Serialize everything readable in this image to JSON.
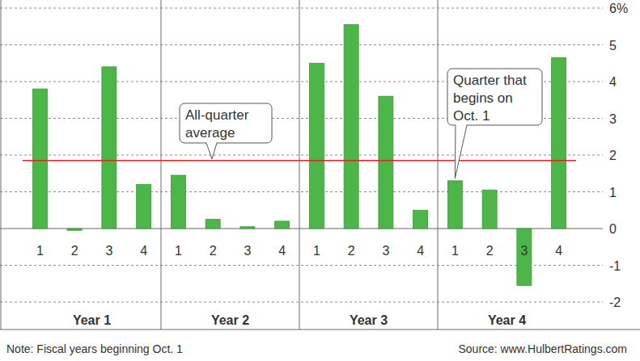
{
  "chart_data": {
    "type": "bar",
    "categories": [
      "1",
      "2",
      "3",
      "4",
      "1",
      "2",
      "3",
      "4",
      "1",
      "2",
      "3",
      "4",
      "1",
      "2",
      "3",
      "4"
    ],
    "values": [
      3.8,
      -0.05,
      4.4,
      1.2,
      1.45,
      0.25,
      0.05,
      0.2,
      4.5,
      5.55,
      3.6,
      0.5,
      1.3,
      1.05,
      -1.55,
      4.65
    ],
    "groups": [
      "Year 1",
      "Year 2",
      "Year 3",
      "Year 4"
    ],
    "color": "#4cb648",
    "ylim": [
      -2,
      6
    ],
    "yticks": [
      -2,
      -1,
      0,
      1,
      2,
      3,
      4,
      5,
      {
        "value": 6,
        "label": "6%"
      }
    ],
    "grid": true,
    "average": {
      "value": 1.85,
      "color": "#e02424"
    },
    "annotations": [
      {
        "lines": [
          "All-quarter",
          "average"
        ]
      },
      {
        "lines": [
          "Quarter that",
          "begins on",
          "Oct. 1"
        ]
      }
    ],
    "note": "Note: Fiscal years beginning Oct. 1",
    "source": "Source: www.HulbertRatings.com"
  }
}
